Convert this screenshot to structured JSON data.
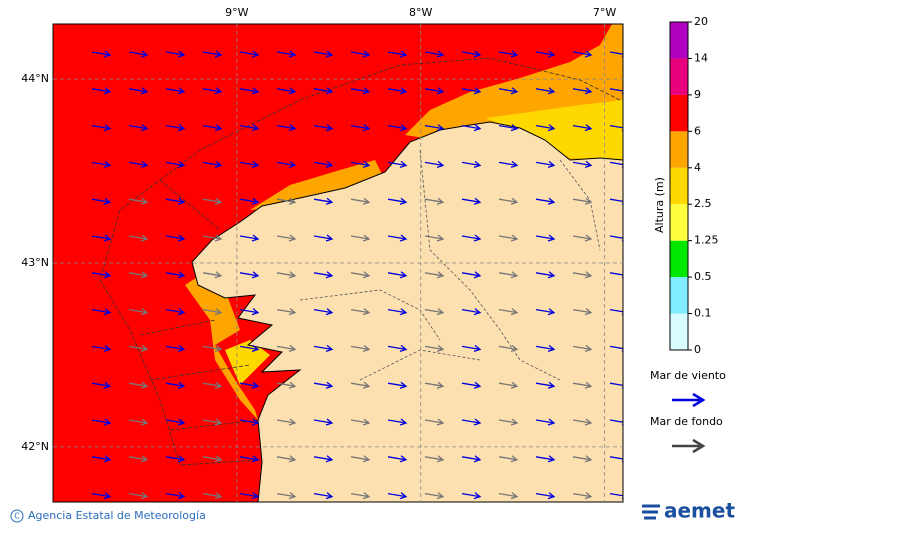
{
  "map": {
    "lonlim": [
      -10,
      -6.9
    ],
    "latlim": [
      41.7,
      44.3
    ],
    "lon_ticks": [
      {
        "value": -9,
        "label": "9°W"
      },
      {
        "value": -8,
        "label": "8°W"
      },
      {
        "value": -7,
        "label": "7°W"
      }
    ],
    "lat_ticks": [
      {
        "value": 44,
        "label": "44°N"
      },
      {
        "value": 43,
        "label": "43°N"
      },
      {
        "value": 42,
        "label": "42°N"
      }
    ]
  },
  "colorbar": {
    "label": "Altura (m)",
    "levels": [
      0,
      0.1,
      0.5,
      1.25,
      2.5,
      4,
      6,
      9,
      14,
      20
    ],
    "colors": [
      "#d8fcff",
      "#80ecff",
      "#00e800",
      "#ffff40",
      "#ffd800",
      "#ffa500",
      "#ff0000",
      "#e8007c",
      "#b000c0"
    ]
  },
  "legend": [
    {
      "name": "Mar de viento",
      "color": "#0000dd"
    },
    {
      "name": "Mar de fondo",
      "color": "#444444"
    }
  ],
  "footer": {
    "credit": "Agencia Estatal de Meteorología",
    "logo": "aemet"
  }
}
